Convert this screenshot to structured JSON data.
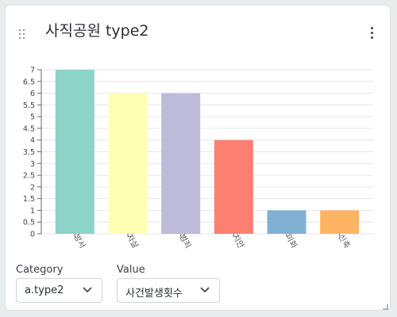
{
  "widget": {
    "title": "사직공원 type2"
  },
  "controls": {
    "category_label": "Category",
    "category_value": "a.type2",
    "value_label": "Value",
    "value_value": "사건발생횟수"
  },
  "chart_data": {
    "type": "bar",
    "categories": [
      "방서",
      "자살",
      "범죄",
      "치안",
      "미화",
      "신축"
    ],
    "values": [
      7,
      6,
      6,
      4,
      1,
      1
    ],
    "colors": [
      "#8dd3c7",
      "#ffffb3",
      "#bebada",
      "#fb8072",
      "#80b1d3",
      "#fdb462"
    ],
    "ylim": [
      0,
      7
    ],
    "yticks": [
      "0",
      "0.5",
      "1",
      "1.5",
      "2",
      "2.5",
      "3",
      "3.5",
      "4",
      "4.5",
      "5",
      "5.5",
      "6",
      "6.5",
      "7"
    ],
    "grid": true
  }
}
